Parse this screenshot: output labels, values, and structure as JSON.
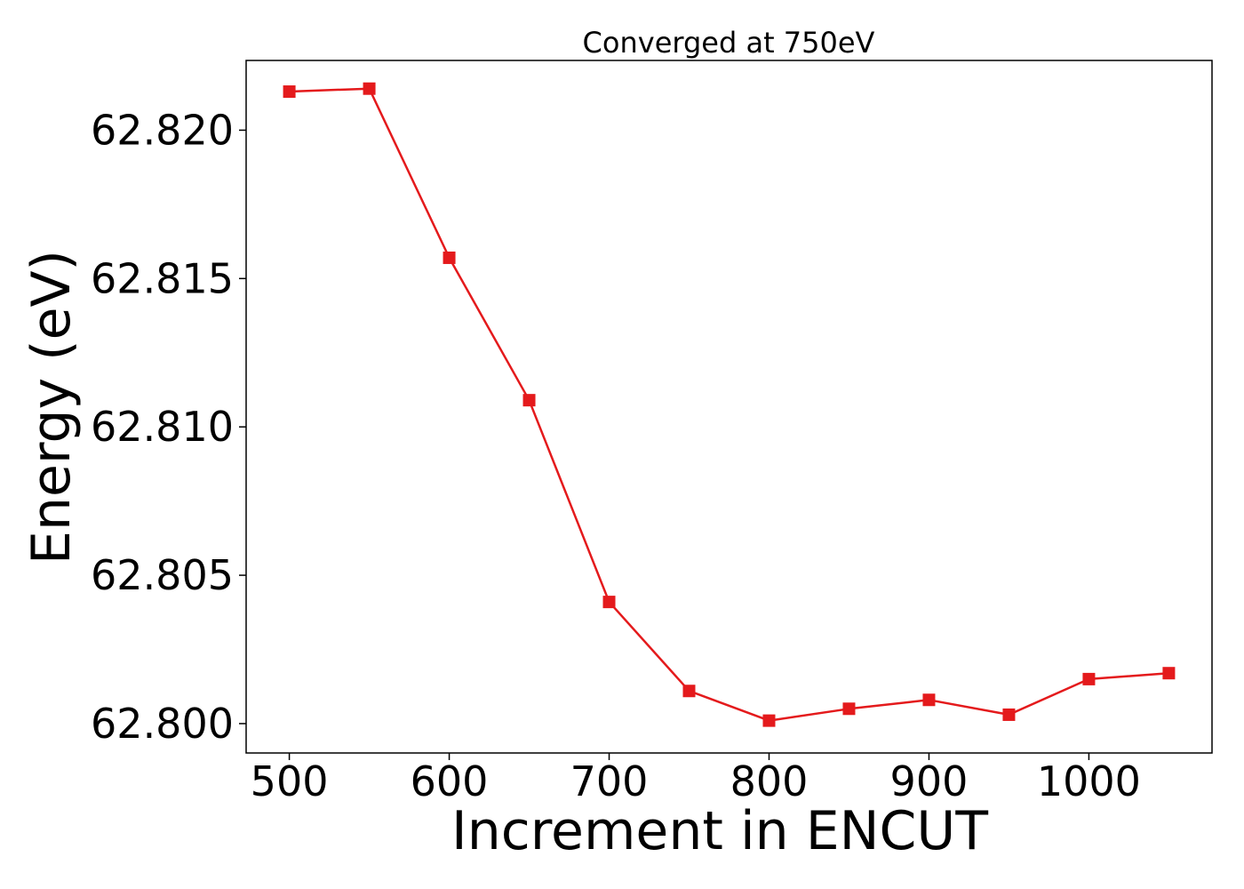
{
  "chart_data": {
    "type": "line",
    "title": "Converged at 750eV",
    "xlabel": "Increment in ENCUT",
    "ylabel": "Energy (eV)",
    "x": [
      500,
      550,
      600,
      650,
      700,
      750,
      800,
      850,
      900,
      950,
      1000,
      1050
    ],
    "series": [
      {
        "values": [
          62.8213,
          62.8214,
          62.8157,
          62.8109,
          62.8041,
          62.8011,
          62.8001,
          62.8005,
          62.8008,
          62.8003,
          62.8015,
          62.8017
        ],
        "color": "#e41a1c",
        "marker": "square"
      }
    ],
    "xlim": [
      473,
      1077
    ],
    "ylim": [
      62.79901,
      62.82235
    ],
    "xticks": [
      500,
      600,
      700,
      800,
      900,
      1000
    ],
    "xtick_labels": [
      "500",
      "600",
      "700",
      "800",
      "900",
      "1000"
    ],
    "yticks": [
      62.8,
      62.805,
      62.81,
      62.815,
      62.82
    ],
    "ytick_labels": [
      "62.800",
      "62.805",
      "62.810",
      "62.815",
      "62.820"
    ],
    "grid": false,
    "legend": "none"
  }
}
